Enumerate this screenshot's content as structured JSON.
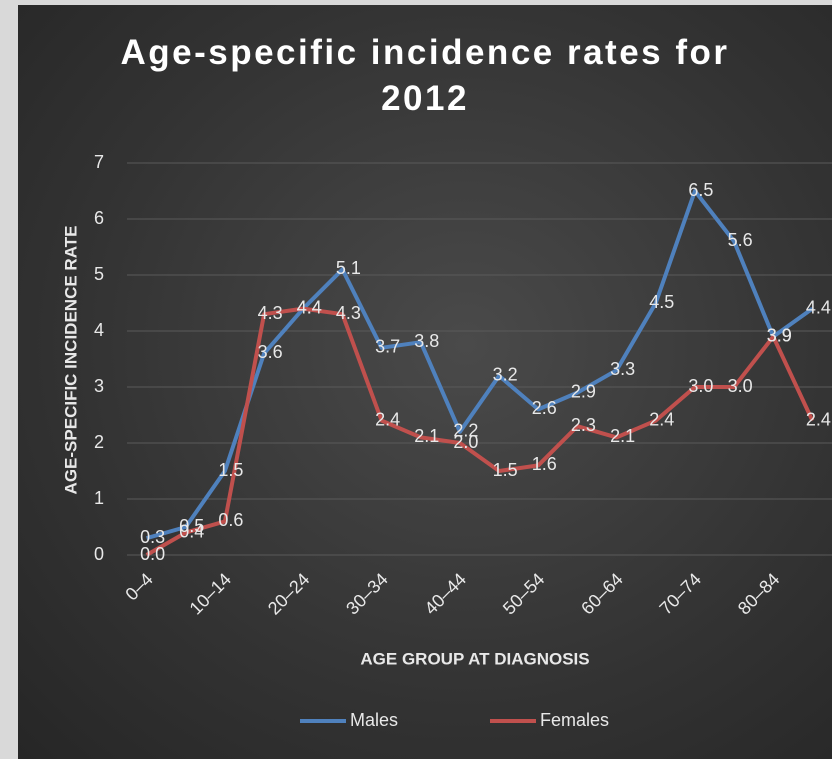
{
  "chart_data": {
    "type": "line",
    "title": "Age-specific incidence rates for 2012",
    "x_label": "AGE GROUP AT DIAGNOSIS",
    "y_label": "AGE-SPECIFIC INCIDENCE RATE",
    "categories": [
      "0–4",
      null,
      "10–14",
      null,
      "20–24",
      null,
      "30–34",
      null,
      "40–44",
      null,
      "50–54",
      null,
      "60–64",
      null,
      "70–74",
      null,
      "80–84",
      null
    ],
    "series": [
      {
        "name": "Males",
        "color": "#4f81bd",
        "values": [
          0.3,
          0.5,
          1.5,
          3.6,
          4.4,
          5.1,
          3.7,
          3.8,
          2.2,
          3.2,
          2.6,
          2.9,
          3.3,
          4.5,
          6.5,
          5.6,
          3.9,
          4.4
        ],
        "value_labels": [
          "0.3",
          "0.5",
          "1.5",
          "3.6",
          "4.4",
          "5.1",
          "3.7",
          "3.8",
          "2.2",
          "3.2",
          "2.6",
          "2.9",
          "3.3",
          "4.5",
          "6.5",
          "5.6",
          "3.9",
          "4.4"
        ]
      },
      {
        "name": "Females",
        "color": "#c0504d",
        "values": [
          0.0,
          0.4,
          0.6,
          4.3,
          4.4,
          4.3,
          2.4,
          2.1,
          2.0,
          1.5,
          1.6,
          2.3,
          2.1,
          2.4,
          3.0,
          3.0,
          3.9,
          2.4
        ],
        "value_labels": [
          "0.0",
          "0.4",
          "0.6",
          "4.3",
          "4.4",
          "4.3",
          "2.4",
          "2.1",
          "2.0",
          "1.5",
          "1.6",
          "2.3",
          "2.1",
          "2.4",
          "3.0",
          "3.0",
          "3.9",
          "2.4"
        ]
      }
    ],
    "ylim": [
      0,
      7
    ],
    "yticks": [
      0,
      1,
      2,
      3,
      4,
      5,
      6,
      7
    ],
    "grid": true,
    "legend": "bottom"
  }
}
